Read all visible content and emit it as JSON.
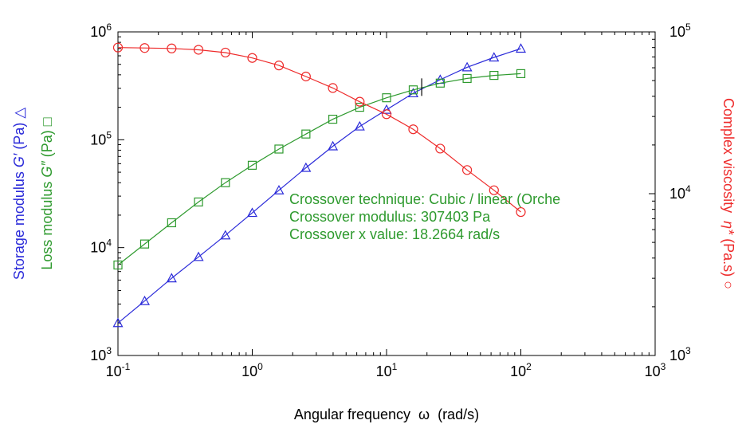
{
  "chart_data": {
    "type": "scatter",
    "xlabel": "Angular frequency  ω  (rad/s)",
    "ylabel_left_storage": {
      "prefix": "Storage modulus ",
      "symbol": "G′",
      "suffix": " (Pa) "
    },
    "ylabel_left_loss": {
      "prefix": "Loss modulus ",
      "symbol": "G″",
      "suffix": " (Pa) "
    },
    "ylabel_right": {
      "prefix": "Complex viscosity  ",
      "symbol": "η*",
      "suffix": " (Pa.s) "
    },
    "x_scale": "log",
    "y_scale_left": "log",
    "y_scale_right": "log",
    "xlim": [
      0.1,
      1000
    ],
    "ylim_left": [
      1000,
      1000000
    ],
    "ylim_right": [
      1000,
      100000
    ],
    "x_ticks": [
      {
        "base": "10",
        "exp": "-1",
        "value": 0.1
      },
      {
        "base": "10",
        "exp": "0",
        "value": 1
      },
      {
        "base": "10",
        "exp": "1",
        "value": 10
      },
      {
        "base": "10",
        "exp": "2",
        "value": 100
      },
      {
        "base": "10",
        "exp": "3",
        "value": 1000
      }
    ],
    "y_ticks_left": [
      {
        "base": "10",
        "exp": "3",
        "value": 1000
      },
      {
        "base": "10",
        "exp": "4",
        "value": 10000
      },
      {
        "base": "10",
        "exp": "5",
        "value": 100000
      },
      {
        "base": "10",
        "exp": "6",
        "value": 1000000
      }
    ],
    "y_ticks_right": [
      {
        "base": "10",
        "exp": "3",
        "value": 1000
      },
      {
        "base": "10",
        "exp": "4",
        "value": 10000
      },
      {
        "base": "10",
        "exp": "5",
        "value": 100000
      }
    ],
    "x": [
      0.1,
      0.158,
      0.251,
      0.398,
      0.631,
      1.0,
      1.58,
      2.51,
      3.98,
      6.31,
      10.0,
      15.8,
      25.1,
      39.8,
      63.1,
      100.0
    ],
    "series": [
      {
        "name": "G′",
        "axis": "left",
        "color": "#2b2bd9",
        "marker": "triangle",
        "values": [
          2000,
          3200,
          5200,
          8200,
          13000,
          21000,
          34000,
          55000,
          87000,
          133000,
          190000,
          270000,
          360000,
          470000,
          580000,
          700000
        ]
      },
      {
        "name": "G″",
        "axis": "left",
        "color": "#2e9a2e",
        "marker": "square",
        "values": [
          6900,
          10800,
          17000,
          26500,
          40000,
          58000,
          82000,
          113000,
          155000,
          200000,
          245000,
          290000,
          335000,
          370000,
          395000,
          410000
        ]
      },
      {
        "name": "η*",
        "axis": "right",
        "color": "#ee2b2b",
        "marker": "circle",
        "values": [
          80000,
          79500,
          79000,
          77500,
          74500,
          69000,
          62000,
          53000,
          45000,
          37000,
          31000,
          25000,
          19000,
          14000,
          10500,
          7700
        ]
      }
    ],
    "crossover": {
      "x": 18.2664,
      "y": 307403
    },
    "annotations": [
      "Crossover technique: Cubic / linear (Orche",
      "Crossover modulus: 307403 Pa",
      "Crossover x value: 18.2664 rad/s"
    ],
    "grid": false,
    "legend": "none"
  }
}
